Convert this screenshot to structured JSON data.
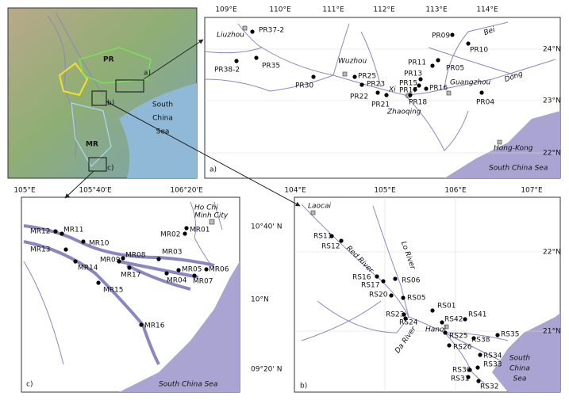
{
  "overview": {
    "basin_labels": [
      "PR",
      "MR"
    ],
    "inset_labels": [
      "a)",
      "b)",
      "c)"
    ],
    "sea_label_lines": [
      "South",
      "China",
      "Sea"
    ]
  },
  "panel_a": {
    "label": "a)",
    "lon_ticks": [
      "109°E",
      "110°E",
      "111°E",
      "112°E",
      "113°E",
      "114°E"
    ],
    "lat_ticks": [
      "24°N",
      "23°N",
      "22°N"
    ],
    "cities": [
      "Liuzhou",
      "Wuzhou",
      "Guangzhou",
      "Zhaoqing",
      "Hong-Kong"
    ],
    "rivers": [
      "Bei",
      "Dong",
      "Xi"
    ],
    "stations": [
      "PR37-2",
      "PR38-2",
      "PR35",
      "PR30",
      "PR25",
      "PR23",
      "PR22",
      "PR21",
      "PR09",
      "PR10",
      "PR05",
      "PR11",
      "PR13",
      "PR15",
      "PR17",
      "PR16",
      "PR18",
      "PR04"
    ],
    "sea_label": "South China Sea"
  },
  "panel_b": {
    "label": "b)",
    "lon_ticks": [
      "104°E",
      "105°E",
      "106°E",
      "107°E"
    ],
    "lat_ticks": [
      "22°N",
      "21°N"
    ],
    "cities": [
      "Laocai",
      "Hanoi"
    ],
    "rivers": [
      "Red River",
      "Lo River",
      "Da River"
    ],
    "stations": [
      "RS11",
      "RS12",
      "RS16",
      "RS17",
      "RS06",
      "RS20",
      "RS05",
      "RS23",
      "RS24",
      "RS01",
      "RS42",
      "RS41",
      "RS25",
      "RS38",
      "RS26",
      "RS35",
      "RS34",
      "RS30",
      "RS33",
      "RS31",
      "RS32"
    ],
    "sea_label_lines": [
      "South",
      "China",
      "Sea"
    ]
  },
  "panel_c": {
    "label": "c)",
    "lon_ticks": [
      "105°E",
      "105°40'E",
      "106°20'E"
    ],
    "lat_ticks": [
      "10°40' N",
      "10°N",
      "09°20' N"
    ],
    "city_lines": [
      "Ho Chi",
      "Minh City"
    ],
    "stations": [
      "MR12",
      "MR11",
      "MR10",
      "MR13",
      "MR14",
      "MR09",
      "MR08",
      "MR03",
      "MR17",
      "MR05",
      "MR06",
      "MR04",
      "MR07",
      "MR15",
      "MR16",
      "MR02",
      "MR01"
    ],
    "sea_label": "South China Sea"
  }
}
